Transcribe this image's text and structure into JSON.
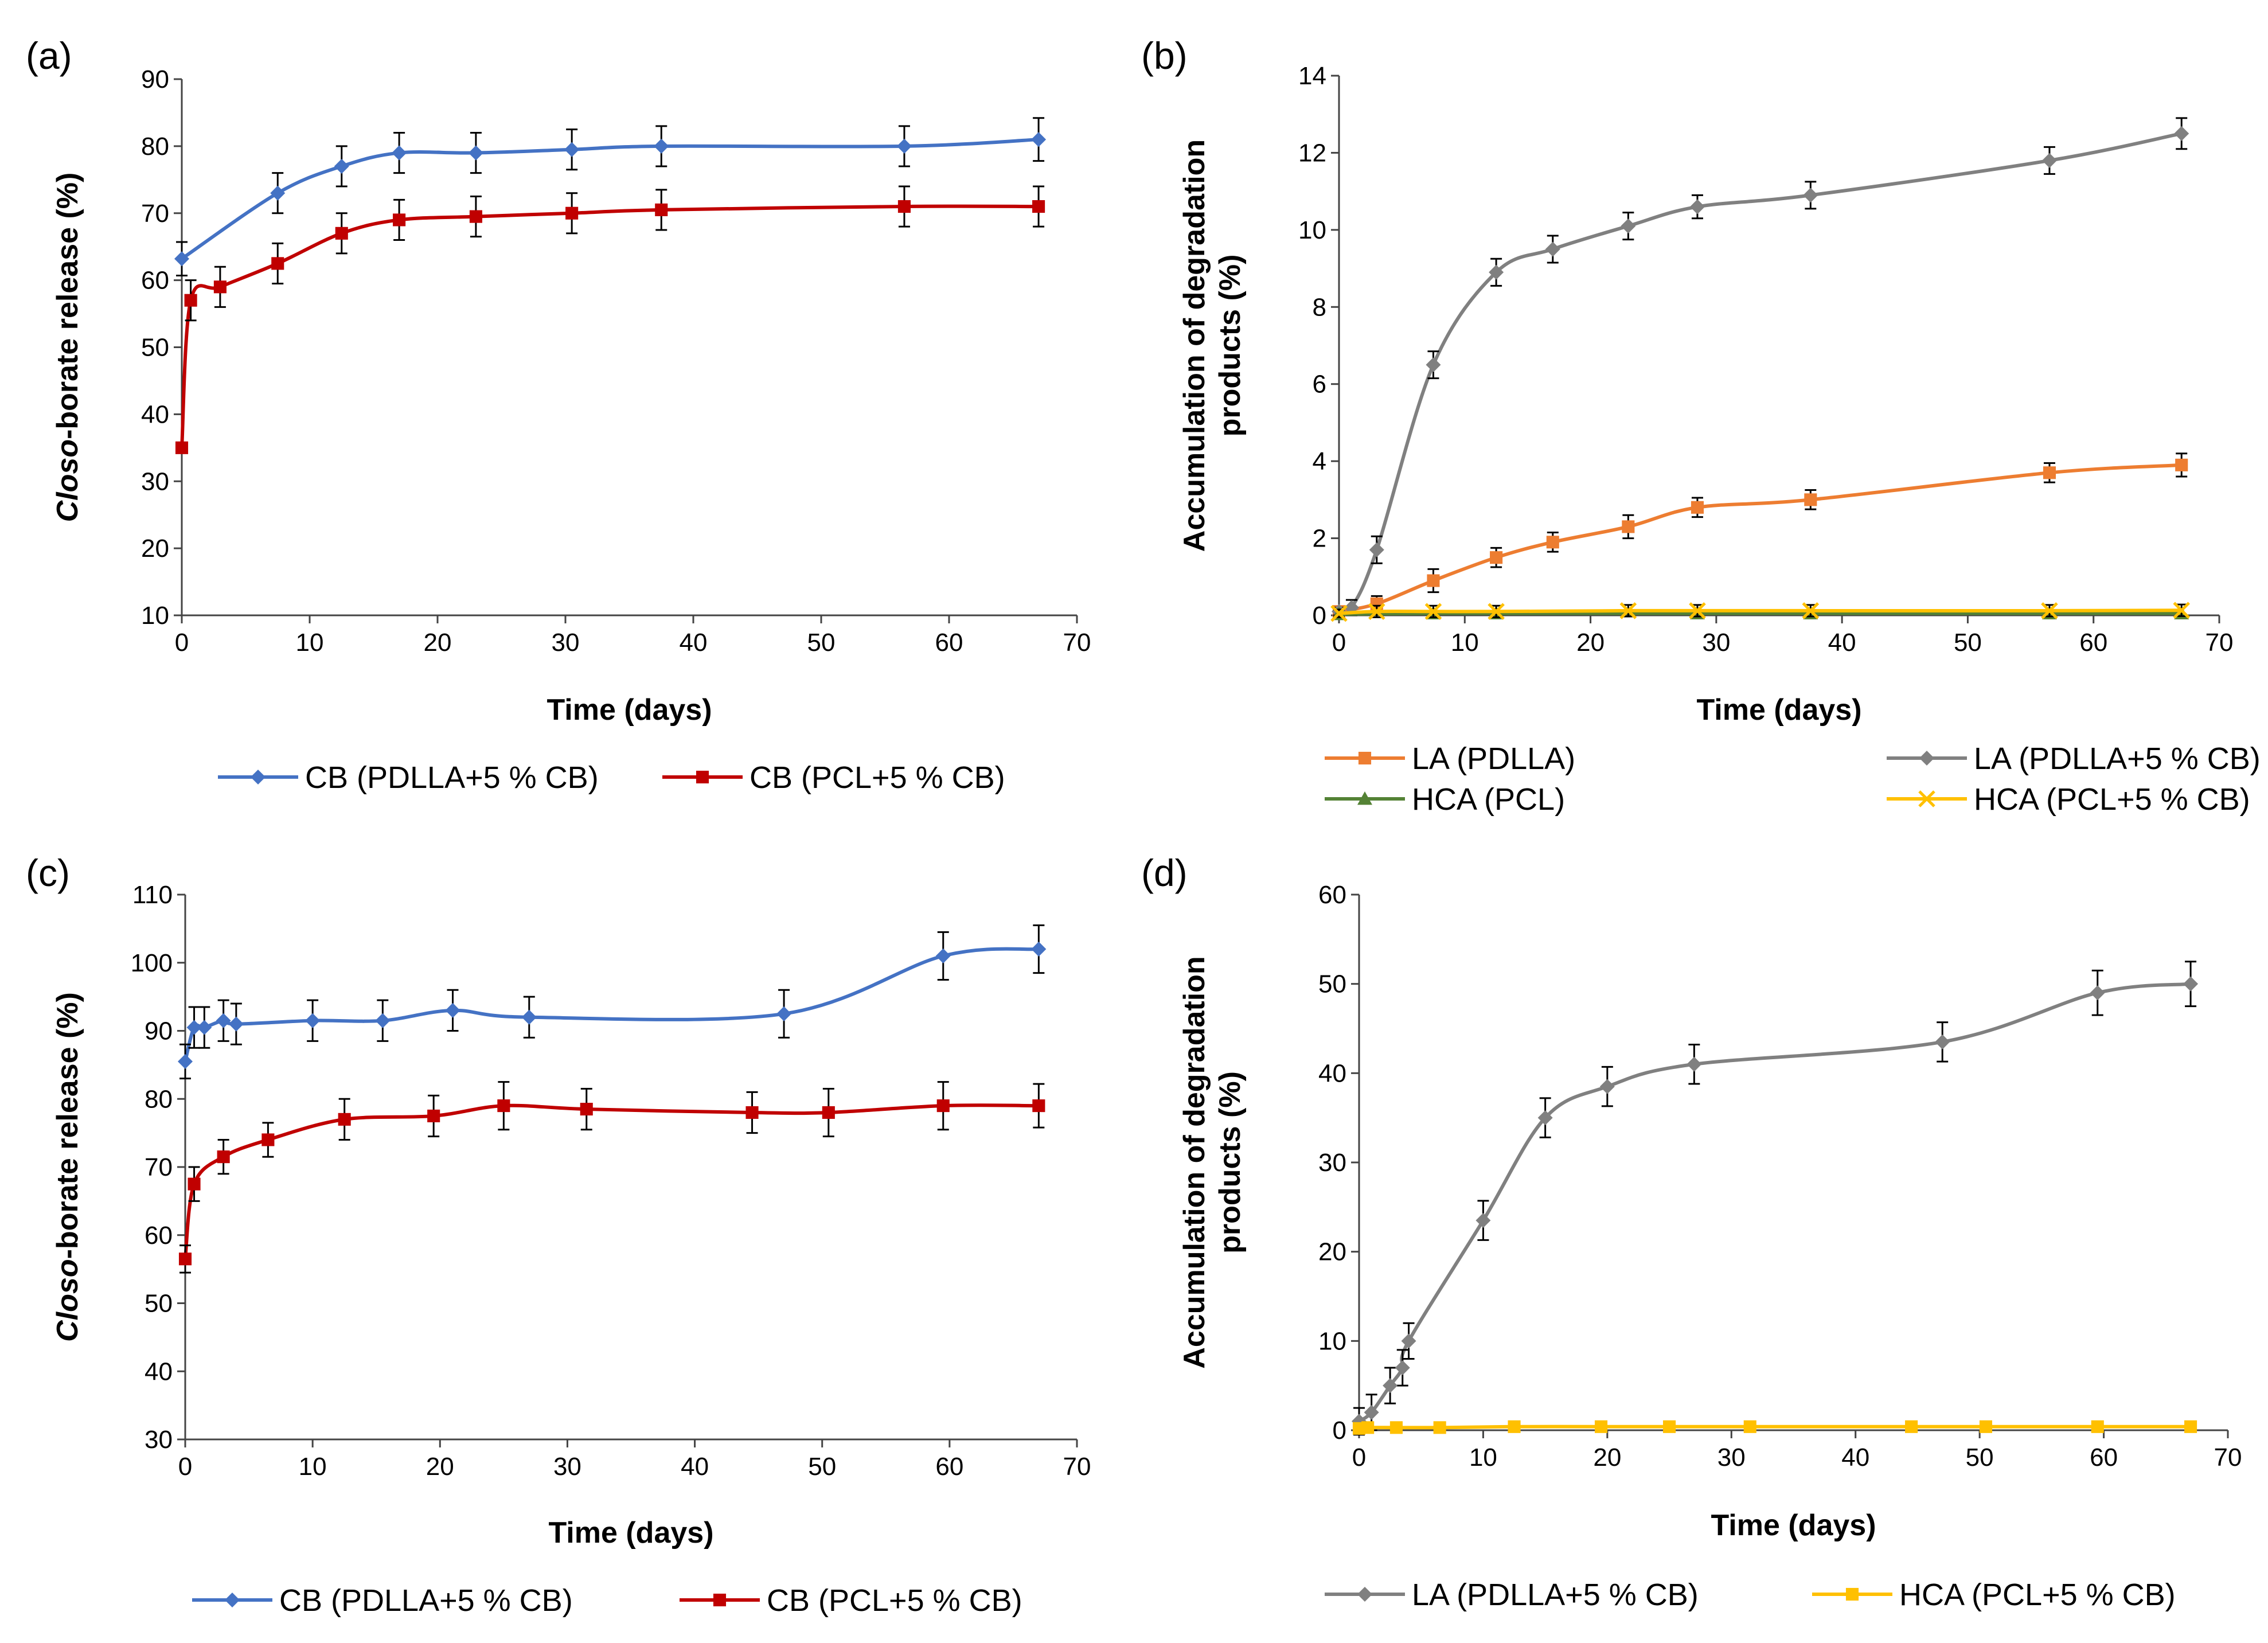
{
  "chart_data": [
    {
      "panel": "(a)",
      "type": "line",
      "xlabel": "Time (days)",
      "ylabel": "Closo-borate release (%)",
      "ylabel_parts": [
        {
          "text": "Closo",
          "italic": true
        },
        {
          "text": "-borate release (%)",
          "italic": false
        }
      ],
      "xlim": [
        0,
        70
      ],
      "xticks": [
        0,
        10,
        20,
        30,
        40,
        50,
        60,
        70
      ],
      "ylim": [
        10,
        90
      ],
      "yticks": [
        10,
        20,
        30,
        40,
        50,
        60,
        70,
        80,
        90
      ],
      "series": [
        {
          "name": "CB (PDLLA+5 % CB)",
          "color": "#4472C4",
          "marker": "diamond",
          "x": [
            0,
            7.5,
            12.5,
            17,
            23,
            30.5,
            37.5,
            56.5,
            67
          ],
          "y": [
            63.2,
            73,
            77,
            79,
            79,
            79.5,
            80,
            80,
            81
          ],
          "err": [
            2.5,
            3,
            3,
            3,
            3,
            3,
            3,
            3,
            3.2
          ]
        },
        {
          "name": "CB (PCL+5 % CB)",
          "color": "#C00000",
          "marker": "square",
          "x": [
            0,
            0.7,
            3,
            7.5,
            12.5,
            17,
            23,
            30.5,
            37.5,
            56.5,
            67
          ],
          "y": [
            35,
            57,
            59,
            62.5,
            67,
            69,
            69.5,
            70,
            70.5,
            71,
            71
          ],
          "err": [
            0,
            3,
            3,
            3,
            3,
            3,
            3,
            3,
            3,
            3,
            3
          ]
        }
      ]
    },
    {
      "panel": "(b)",
      "type": "line",
      "xlabel": "Time (days)",
      "ylabel": "Accumulation of degradation products (%)",
      "ylabel_lines": [
        "Accumulation of degradation",
        "products (%)"
      ],
      "xlim": [
        0,
        70
      ],
      "xticks": [
        0,
        10,
        20,
        30,
        40,
        50,
        60,
        70
      ],
      "ylim": [
        0,
        14
      ],
      "yticks": [
        0,
        2,
        4,
        6,
        8,
        10,
        12,
        14
      ],
      "series": [
        {
          "name": "LA (PDLLA)",
          "color": "#ED7D31",
          "marker": "square",
          "x": [
            0,
            3,
            7.5,
            12.5,
            17,
            23,
            28.5,
            37.5,
            56.5,
            67
          ],
          "y": [
            0.1,
            0.3,
            0.9,
            1.5,
            1.9,
            2.3,
            2.8,
            3,
            3.7,
            3.9
          ],
          "err": [
            0.1,
            0.2,
            0.3,
            0.25,
            0.25,
            0.3,
            0.25,
            0.25,
            0.25,
            0.3
          ]
        },
        {
          "name": "LA (PDLLA+5 % CB)",
          "color": "#808080",
          "marker": "diamond",
          "x": [
            0,
            1,
            3,
            7.5,
            12.5,
            17,
            23,
            28.5,
            37.5,
            56.5,
            67
          ],
          "y": [
            0.1,
            0.2,
            1.7,
            6.5,
            8.9,
            9.5,
            10.1,
            10.6,
            10.9,
            11.8,
            12.5
          ],
          "err": [
            0.1,
            0.2,
            0.35,
            0.35,
            0.35,
            0.35,
            0.35,
            0.3,
            0.35,
            0.35,
            0.4
          ]
        },
        {
          "name": "HCA (PCL)",
          "color": "#548235",
          "marker": "triangle",
          "x": [
            0,
            7.5,
            12.5,
            28.5,
            37.5,
            56.5,
            67
          ],
          "y": [
            0.03,
            0.05,
            0.05,
            0.05,
            0.05,
            0.05,
            0.05
          ],
          "err": [
            0,
            0,
            0,
            0,
            0,
            0,
            0
          ]
        },
        {
          "name": "HCA (PCL+5 % CB)",
          "color": "#FFC000",
          "marker": "x",
          "x": [
            0,
            3,
            7.5,
            12.5,
            23,
            28.5,
            37.5,
            56.5,
            67
          ],
          "y": [
            0.05,
            0.1,
            0.1,
            0.1,
            0.12,
            0.12,
            0.12,
            0.12,
            0.13
          ],
          "err": [
            0.1,
            0.15,
            0.15,
            0.15,
            0.15,
            0.15,
            0.15,
            0.15,
            0.15
          ]
        }
      ]
    },
    {
      "panel": "(c)",
      "type": "line",
      "xlabel": "Time (days)",
      "ylabel": "Closo-borate release (%)",
      "ylabel_parts": [
        {
          "text": "Closo",
          "italic": true
        },
        {
          "text": "-borate release (%)",
          "italic": false
        }
      ],
      "xlim": [
        0,
        70
      ],
      "xticks": [
        0,
        10,
        20,
        30,
        40,
        50,
        60,
        70
      ],
      "ylim": [
        30,
        110
      ],
      "yticks": [
        30,
        40,
        50,
        60,
        70,
        80,
        90,
        100,
        110
      ],
      "series": [
        {
          "name": "CB (PDLLA+5 % CB)",
          "color": "#4472C4",
          "marker": "diamond",
          "x": [
            0,
            0.7,
            1.5,
            3,
            4,
            10,
            15.5,
            21,
            27,
            47,
            59.5,
            67
          ],
          "y": [
            85.5,
            90.5,
            90.5,
            91.5,
            91,
            91.5,
            91.5,
            93,
            92,
            92.5,
            101,
            102
          ],
          "err": [
            2.5,
            3,
            3,
            3,
            3,
            3,
            3,
            3,
            3,
            3.5,
            3.5,
            3.5
          ]
        },
        {
          "name": "CB (PCL+5 % CB)",
          "color": "#C00000",
          "marker": "square",
          "x": [
            0,
            0.7,
            3,
            6.5,
            12.5,
            19.5,
            25,
            31.5,
            44.5,
            50.5,
            59.5,
            67
          ],
          "y": [
            56.5,
            67.5,
            71.5,
            74,
            77,
            77.5,
            79,
            78.5,
            78,
            78,
            79,
            79
          ],
          "err": [
            2,
            2.5,
            2.5,
            2.5,
            3,
            3,
            3.5,
            3,
            3,
            3.5,
            3.5,
            3.2
          ]
        }
      ]
    },
    {
      "panel": "(d)",
      "type": "line",
      "xlabel": "Time (days)",
      "ylabel": "Accumulation of degradation products (%)",
      "ylabel_lines": [
        "Accumulation of degradation",
        "products (%)"
      ],
      "xlim": [
        0,
        70
      ],
      "xticks": [
        0,
        10,
        20,
        30,
        40,
        50,
        60,
        70
      ],
      "ylim": [
        0,
        60
      ],
      "yticks": [
        0,
        10,
        20,
        30,
        40,
        50,
        60
      ],
      "series": [
        {
          "name": "LA (PDLLA+5 % CB)",
          "color": "#808080",
          "marker": "diamond",
          "x": [
            0,
            1,
            2.5,
            3.5,
            4,
            10,
            15,
            20,
            27,
            47,
            59.5,
            67
          ],
          "y": [
            1,
            2,
            5,
            7,
            10,
            23.5,
            35,
            38.5,
            41,
            43.5,
            49,
            50
          ],
          "err": [
            1.5,
            2,
            2,
            2,
            2,
            2.2,
            2.2,
            2.2,
            2.2,
            2.2,
            2.5,
            2.5
          ]
        },
        {
          "name": "HCA (PCL+5 % CB)",
          "color": "#FFC000",
          "marker": "square",
          "x": [
            0,
            0.7,
            3,
            6.5,
            12.5,
            19.5,
            25,
            31.5,
            44.5,
            50.5,
            59.5,
            67
          ],
          "y": [
            0.2,
            0.3,
            0.3,
            0.3,
            0.4,
            0.4,
            0.4,
            0.4,
            0.4,
            0.4,
            0.4,
            0.4
          ],
          "err": [
            0,
            0,
            0,
            0,
            0,
            0,
            0,
            0,
            0,
            0,
            0,
            0
          ]
        }
      ]
    }
  ]
}
